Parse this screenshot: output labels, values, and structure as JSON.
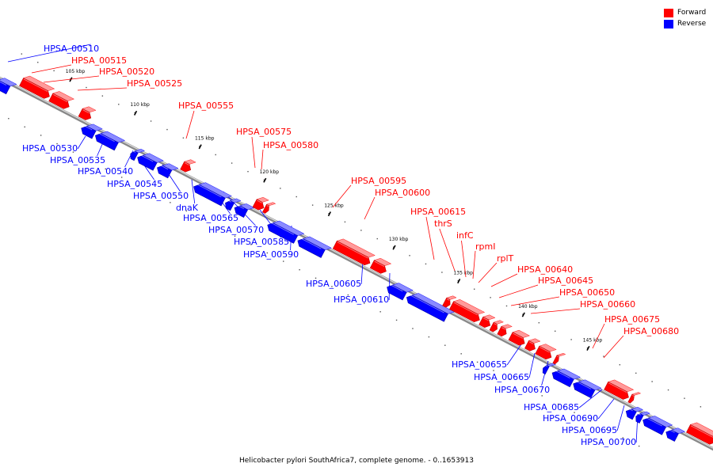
{
  "legend": {
    "forward_label": "Forward",
    "reverse_label": "Reverse",
    "forward_color": "#ff0000",
    "reverse_color": "#0000ff"
  },
  "caption": "Helicobacter pylori SouthAfrica7, complete genome. - 0..1653913",
  "ticks": [
    "105 kbp",
    "110 kbp",
    "115 kbp",
    "120 kbp",
    "125 kbp",
    "130 kbp",
    "135 kbp",
    "140 kbp",
    "145 kbp"
  ],
  "genes": [
    {
      "label": "HPSA_00510",
      "strand": "reverse"
    },
    {
      "label": "HPSA_00515",
      "strand": "forward"
    },
    {
      "label": "HPSA_00520",
      "strand": "forward"
    },
    {
      "label": "HPSA_00525",
      "strand": "forward"
    },
    {
      "label": "HPSA_00530",
      "strand": "reverse"
    },
    {
      "label": "HPSA_00535",
      "strand": "reverse"
    },
    {
      "label": "HPSA_00540",
      "strand": "reverse"
    },
    {
      "label": "HPSA_00545",
      "strand": "reverse"
    },
    {
      "label": "HPSA_00550",
      "strand": "reverse"
    },
    {
      "label": "HPSA_00555",
      "strand": "forward"
    },
    {
      "label": "dnaK",
      "strand": "reverse"
    },
    {
      "label": "HPSA_00565",
      "strand": "reverse"
    },
    {
      "label": "HPSA_00570",
      "strand": "reverse"
    },
    {
      "label": "HPSA_00575",
      "strand": "forward"
    },
    {
      "label": "HPSA_00580",
      "strand": "forward"
    },
    {
      "label": "HPSA_00585",
      "strand": "reverse"
    },
    {
      "label": "HPSA_00590",
      "strand": "reverse"
    },
    {
      "label": "HPSA_00595",
      "strand": "forward"
    },
    {
      "label": "HPSA_00600",
      "strand": "forward"
    },
    {
      "label": "HPSA_00605",
      "strand": "reverse"
    },
    {
      "label": "HPSA_00610",
      "strand": "reverse"
    },
    {
      "label": "HPSA_00615",
      "strand": "forward"
    },
    {
      "label": "thrS",
      "strand": "forward"
    },
    {
      "label": "infC",
      "strand": "forward"
    },
    {
      "label": "rpmI",
      "strand": "forward"
    },
    {
      "label": "rplT",
      "strand": "forward"
    },
    {
      "label": "HPSA_00640",
      "strand": "forward"
    },
    {
      "label": "HPSA_00645",
      "strand": "forward"
    },
    {
      "label": "HPSA_00650",
      "strand": "forward"
    },
    {
      "label": "HPSA_00655",
      "strand": "reverse"
    },
    {
      "label": "HPSA_00660",
      "strand": "forward"
    },
    {
      "label": "HPSA_00665",
      "strand": "reverse"
    },
    {
      "label": "HPSA_00670",
      "strand": "reverse"
    },
    {
      "label": "HPSA_00675",
      "strand": "forward"
    },
    {
      "label": "HPSA_00680",
      "strand": "forward"
    },
    {
      "label": "HPSA_00685",
      "strand": "reverse"
    },
    {
      "label": "HPSA_00690",
      "strand": "reverse"
    },
    {
      "label": "HPSA_00695",
      "strand": "reverse"
    },
    {
      "label": "HPSA_00700",
      "strand": "reverse"
    },
    {
      "label": "",
      "strand": "forward"
    },
    {
      "label": "",
      "strand": "forward"
    },
    {
      "label": "",
      "strand": "reverse"
    }
  ]
}
